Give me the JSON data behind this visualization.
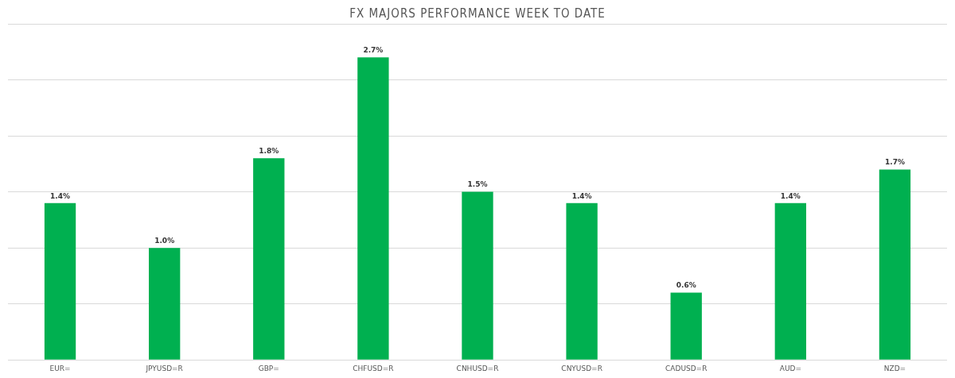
{
  "chart_data": {
    "type": "bar",
    "title": "FX MAJORS PERFORMANCE WEEK TO DATE",
    "categories": [
      "EUR=",
      "JPYUSD=R",
      "GBP=",
      "CHFUSD=R",
      "CNHUSD=R",
      "CNYUSD=R",
      "CADUSD=R",
      "AUD=",
      "NZD="
    ],
    "values": [
      1.4,
      1.0,
      1.8,
      2.7,
      1.5,
      1.4,
      0.6,
      1.4,
      1.7
    ],
    "value_labels": [
      "1.4%",
      "1.0%",
      "1.8%",
      "2.7%",
      "1.5%",
      "1.4%",
      "0.6%",
      "1.4%",
      "1.7%"
    ],
    "color": "#00b050",
    "ylim": [
      0,
      3
    ],
    "yticks": [
      {
        "value": 0,
        "label": null
      },
      {
        "value": 0.5,
        "label": null
      },
      {
        "value": 1,
        "label": null
      },
      {
        "value": 1.5,
        "label": null
      },
      {
        "value": 2,
        "label": null
      },
      {
        "value": 2.5,
        "label": null
      },
      {
        "value": 3,
        "label": null
      }
    ],
    "grid": "y",
    "tick_labels": "x",
    "legend": false
  }
}
